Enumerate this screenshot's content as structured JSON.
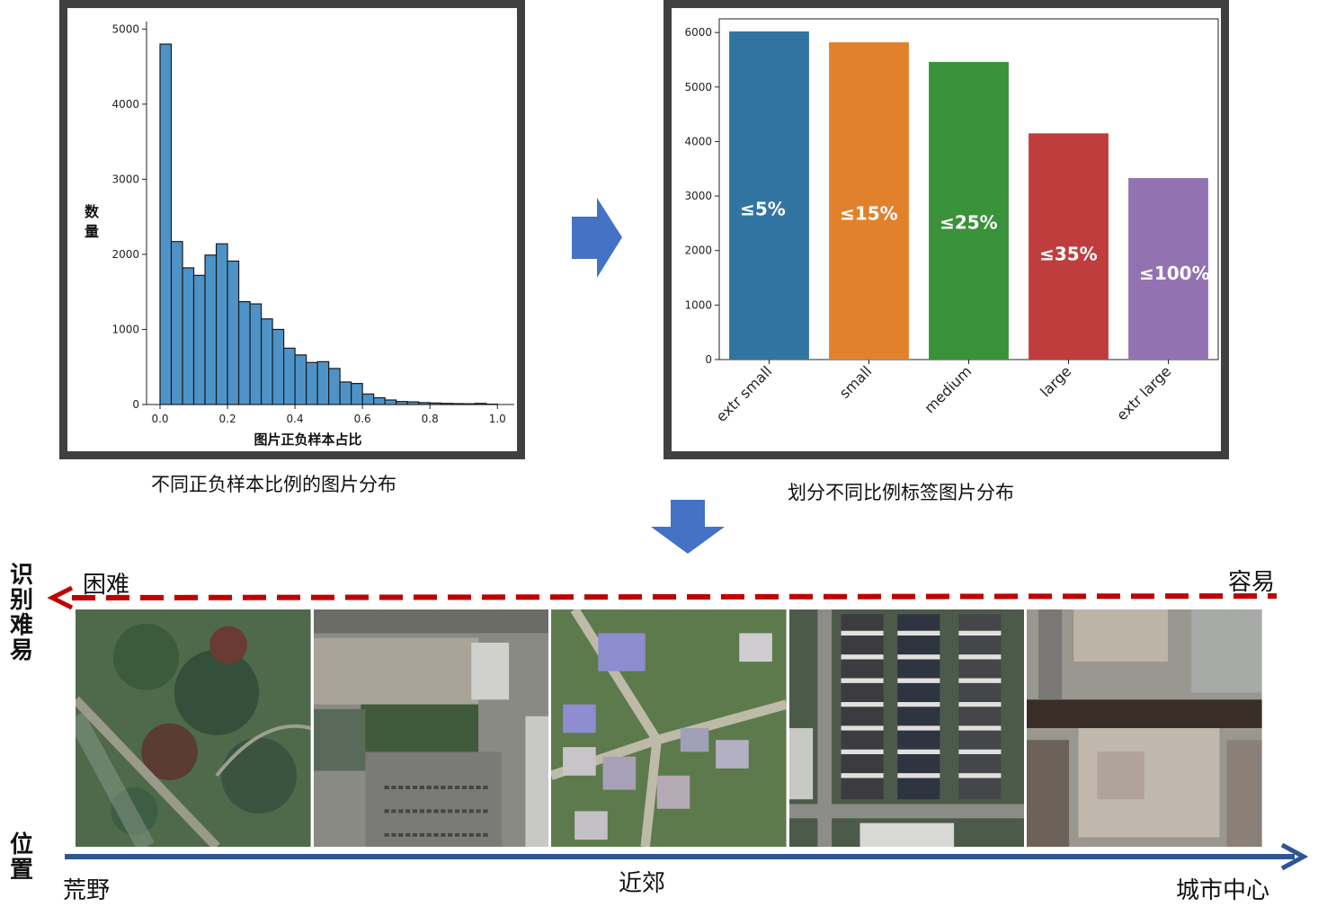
{
  "chart_data": [
    {
      "type": "bar",
      "xlabel": "图片正负样本占比",
      "ylabel": "数量",
      "xlim": [
        -0.04,
        1.05
      ],
      "ylim": [
        0,
        5100
      ],
      "x_ticks": [
        "0.0",
        "0.2",
        "0.4",
        "0.6",
        "0.8",
        "1.0"
      ],
      "y_ticks": [
        "0",
        "1000",
        "2000",
        "3000",
        "4000",
        "5000"
      ],
      "bin_edges": [
        0.0,
        0.0333,
        0.0667,
        0.1,
        0.1333,
        0.1667,
        0.2,
        0.2333,
        0.2667,
        0.3,
        0.3333,
        0.3667,
        0.4,
        0.4333,
        0.4667,
        0.5,
        0.5333,
        0.5667,
        0.6,
        0.6333,
        0.6667,
        0.7,
        0.7333,
        0.7667,
        0.8,
        0.8333,
        0.8667,
        0.9,
        0.9333,
        0.9667,
        1.0
      ],
      "values": [
        4800,
        2170,
        1820,
        1720,
        1990,
        2140,
        1910,
        1370,
        1340,
        1140,
        1000,
        750,
        660,
        560,
        570,
        480,
        300,
        280,
        140,
        90,
        60,
        40,
        35,
        25,
        20,
        15,
        12,
        10,
        15,
        5
      ],
      "color": "#4e93c8"
    },
    {
      "type": "bar",
      "categories": [
        "extr small",
        "small",
        "medium",
        "large",
        "extr large"
      ],
      "values": [
        6020,
        5820,
        5460,
        4150,
        3330
      ],
      "data_labels": [
        "≤5%",
        "≤15%",
        "≤25%",
        "≤35%",
        "≤100%"
      ],
      "ylim": [
        0,
        6250
      ],
      "y_ticks": [
        "0",
        "1000",
        "2000",
        "3000",
        "4000",
        "5000",
        "6000"
      ],
      "colors": [
        "#3274a1",
        "#e1812c",
        "#3a923a",
        "#c03d3e",
        "#9372b2"
      ]
    }
  ],
  "captions": {
    "histogram": "不同正负样本比例的图片分布",
    "bars": "划分不同比例标签图片分布"
  },
  "difficulty": {
    "axis_label": "识别难易",
    "hard": "困难",
    "easy": "容易",
    "arrow_color": "#c00000"
  },
  "location": {
    "axis_label": "位置",
    "wild": "荒野",
    "suburb": "近郊",
    "center": "城市中心",
    "arrow_color": "#2f5597"
  },
  "arrows": {
    "color": "#4472c4"
  }
}
